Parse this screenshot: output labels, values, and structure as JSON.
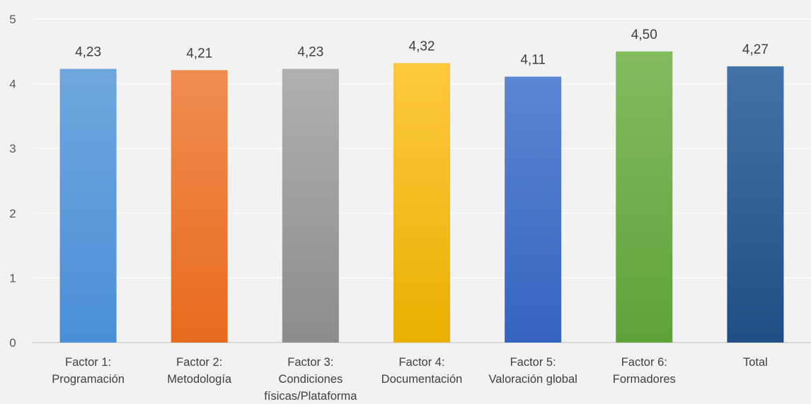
{
  "chart_data": {
    "type": "bar",
    "title": "",
    "xlabel": "",
    "ylabel": "",
    "ylim": [
      0,
      5
    ],
    "yticks": [
      0,
      1,
      2,
      3,
      4,
      5
    ],
    "grid": true,
    "legend": "none",
    "categories": [
      [
        "Factor 1:",
        "Programación"
      ],
      [
        "Factor 2:",
        "Metodología"
      ],
      [
        "Factor 3:",
        "Condiciones",
        "físicas/Plataforma"
      ],
      [
        "Factor 4:",
        "Documentación"
      ],
      [
        "Factor 5:",
        "Valoración global"
      ],
      [
        "Factor 6:",
        "Formadores"
      ],
      [
        "Total"
      ]
    ],
    "values": [
      4.23,
      4.21,
      4.23,
      4.32,
      4.11,
      4.5,
      4.27
    ],
    "data_labels": [
      "4,23",
      "4,21",
      "4,23",
      "4,32",
      "4,11",
      "4,50",
      "4,27"
    ],
    "colors": [
      [
        "#6fa6de",
        "#4a8fd6"
      ],
      [
        "#f08c52",
        "#e86b1c"
      ],
      [
        "#b0b0b0",
        "#8c8c8c"
      ],
      [
        "#ffc840",
        "#e8b000"
      ],
      [
        "#5c86d2",
        "#3563c0"
      ],
      [
        "#83bb5e",
        "#5ea23a"
      ],
      [
        "#4372a8",
        "#1f4e85"
      ]
    ]
  }
}
